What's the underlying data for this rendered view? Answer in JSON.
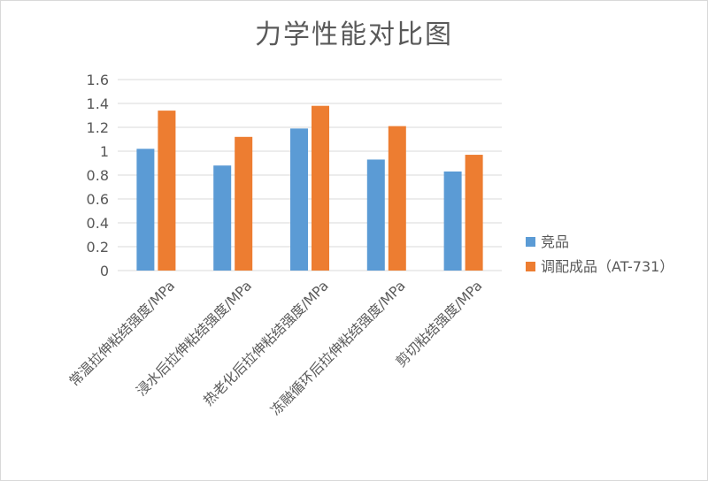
{
  "chart_data": {
    "type": "bar",
    "title": "力学性能对比图",
    "categories": [
      "常温拉伸粘结强度/MPa",
      "浸水后拉伸粘结强度/MPa",
      "热老化后拉伸粘结强度/MPa",
      "冻融循环后拉伸粘结强度/MPa",
      "剪切粘结强度/MPa"
    ],
    "series": [
      {
        "name": "竞品",
        "color": "#5b9bd5",
        "values": [
          1.02,
          0.88,
          1.19,
          0.93,
          0.83
        ]
      },
      {
        "name": "调配成品（AT-731）",
        "color": "#ed7d31",
        "values": [
          1.34,
          1.12,
          1.38,
          1.21,
          0.97
        ]
      }
    ],
    "yticks": [
      "0",
      "0.2",
      "0.4",
      "0.6",
      "0.8",
      "1",
      "1.2",
      "1.4",
      "1.6"
    ],
    "ylim": [
      0,
      1.6
    ],
    "grid": true,
    "legend_position": "right",
    "gridline_color": "#d9d9d9",
    "text_color": "#595959"
  }
}
